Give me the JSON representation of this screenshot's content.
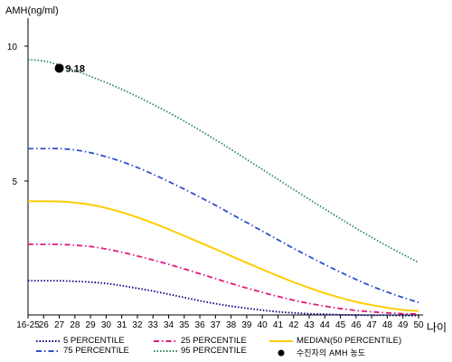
{
  "chart_data": {
    "type": "line",
    "ylabel": "AMH(ng/ml)",
    "xlabel": "나이",
    "y_ticks": [
      5,
      10
    ],
    "ylim": [
      0,
      11
    ],
    "grid": false,
    "categories": [
      "16-25",
      "26",
      "27",
      "28",
      "29",
      "30",
      "31",
      "32",
      "33",
      "34",
      "35",
      "36",
      "37",
      "38",
      "39",
      "40",
      "41",
      "42",
      "43",
      "44",
      "45",
      "46",
      "47",
      "48",
      "49",
      "50"
    ],
    "series": [
      {
        "name": "5 PERCENTILE",
        "color": "#000080",
        "style": "dotted",
        "values": [
          1.3,
          1.3,
          1.3,
          1.28,
          1.25,
          1.2,
          1.12,
          1.02,
          0.92,
          0.8,
          0.68,
          0.56,
          0.45,
          0.36,
          0.28,
          0.21,
          0.15,
          0.11,
          0.08,
          0.06,
          0.04,
          0.03,
          0.02,
          0.02,
          0.01,
          0.01
        ]
      },
      {
        "name": "25 PERCENTILE",
        "color": "#e0197d",
        "style": "dashdot",
        "values": [
          2.65,
          2.65,
          2.65,
          2.62,
          2.57,
          2.48,
          2.36,
          2.22,
          2.07,
          1.91,
          1.74,
          1.56,
          1.38,
          1.2,
          1.03,
          0.87,
          0.72,
          0.58,
          0.46,
          0.36,
          0.27,
          0.2,
          0.15,
          0.11,
          0.08,
          0.07
        ]
      },
      {
        "name": "MEDIAN(50 PERCENTILE)",
        "color": "#ffcc00",
        "style": "solid",
        "values": [
          4.25,
          4.25,
          4.24,
          4.2,
          4.12,
          4.0,
          3.84,
          3.65,
          3.44,
          3.21,
          2.97,
          2.72,
          2.47,
          2.22,
          1.97,
          1.72,
          1.48,
          1.25,
          1.04,
          0.84,
          0.67,
          0.52,
          0.4,
          0.3,
          0.22,
          0.18
        ]
      },
      {
        "name": "75 PERCENTILE",
        "color": "#3050c8",
        "style": "dashdot",
        "values": [
          6.2,
          6.2,
          6.2,
          6.15,
          6.05,
          5.9,
          5.72,
          5.5,
          5.25,
          4.98,
          4.7,
          4.4,
          4.1,
          3.78,
          3.46,
          3.14,
          2.82,
          2.5,
          2.2,
          1.9,
          1.62,
          1.35,
          1.1,
          0.88,
          0.68,
          0.5
        ]
      },
      {
        "name": "95 PERCENTILE",
        "color": "#2e8b57",
        "style": "dotted",
        "values": [
          9.5,
          9.45,
          9.3,
          9.1,
          8.88,
          8.65,
          8.4,
          8.13,
          7.84,
          7.54,
          7.22,
          6.88,
          6.53,
          6.17,
          5.8,
          5.43,
          5.06,
          4.69,
          4.32,
          3.96,
          3.6,
          3.25,
          2.91,
          2.59,
          2.28,
          1.98
        ]
      }
    ],
    "marker": {
      "label": "수진자의 AMH 농도",
      "x": "27",
      "value": 9.18,
      "value_label": "9.18",
      "color": "#000000"
    },
    "legend_position": "bottom"
  }
}
